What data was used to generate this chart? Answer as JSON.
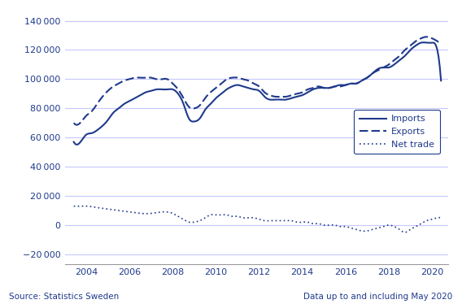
{
  "color": "#1F3A8C",
  "background_color": "#FFFFFF",
  "grid_color": "#C8C8FF",
  "source_text": "Source: Statistics Sweden",
  "data_text": "Data up to and including May 2020",
  "legend_labels": [
    "Imports",
    "Exports",
    "Net trade"
  ],
  "x_tick_years": [
    2004,
    2006,
    2008,
    2010,
    2012,
    2014,
    2016,
    2018,
    2020
  ],
  "yticks": [
    -20000,
    0,
    20000,
    40000,
    60000,
    80000,
    100000,
    120000,
    140000
  ],
  "ylim": [
    -27000,
    148000
  ],
  "xlim": [
    2003.0,
    2020.75
  ],
  "start_year": 2003,
  "start_month": 6,
  "imports_key": [
    [
      2003.42,
      57000
    ],
    [
      2003.83,
      59000
    ],
    [
      2004.0,
      62000
    ],
    [
      2004.25,
      63000
    ],
    [
      2004.5,
      65000
    ],
    [
      2004.75,
      68000
    ],
    [
      2005.0,
      72000
    ],
    [
      2005.25,
      77000
    ],
    [
      2005.5,
      80000
    ],
    [
      2005.75,
      83000
    ],
    [
      2006.0,
      85000
    ],
    [
      2006.25,
      87000
    ],
    [
      2006.5,
      89000
    ],
    [
      2006.75,
      91000
    ],
    [
      2007.0,
      92000
    ],
    [
      2007.25,
      93000
    ],
    [
      2007.5,
      93000
    ],
    [
      2007.75,
      93000
    ],
    [
      2008.0,
      93000
    ],
    [
      2008.25,
      90000
    ],
    [
      2008.5,
      83000
    ],
    [
      2008.75,
      73000
    ],
    [
      2009.0,
      71000
    ],
    [
      2009.25,
      73000
    ],
    [
      2009.5,
      79000
    ],
    [
      2009.75,
      83000
    ],
    [
      2010.0,
      87000
    ],
    [
      2010.25,
      90000
    ],
    [
      2010.5,
      93000
    ],
    [
      2010.75,
      95000
    ],
    [
      2011.0,
      96000
    ],
    [
      2011.25,
      95000
    ],
    [
      2011.5,
      94000
    ],
    [
      2011.75,
      93000
    ],
    [
      2012.0,
      92000
    ],
    [
      2012.25,
      88000
    ],
    [
      2012.5,
      86000
    ],
    [
      2012.75,
      86000
    ],
    [
      2013.0,
      86000
    ],
    [
      2013.25,
      86000
    ],
    [
      2013.5,
      87000
    ],
    [
      2013.75,
      88000
    ],
    [
      2014.0,
      89000
    ],
    [
      2014.25,
      91000
    ],
    [
      2014.5,
      93000
    ],
    [
      2014.75,
      94000
    ],
    [
      2015.0,
      94000
    ],
    [
      2015.25,
      94000
    ],
    [
      2015.5,
      95000
    ],
    [
      2015.75,
      96000
    ],
    [
      2016.0,
      96000
    ],
    [
      2016.25,
      97000
    ],
    [
      2016.5,
      97000
    ],
    [
      2016.75,
      99000
    ],
    [
      2017.0,
      101000
    ],
    [
      2017.25,
      104000
    ],
    [
      2017.5,
      107000
    ],
    [
      2017.75,
      108000
    ],
    [
      2018.0,
      108000
    ],
    [
      2018.25,
      110000
    ],
    [
      2018.5,
      113000
    ],
    [
      2018.75,
      116000
    ],
    [
      2019.0,
      120000
    ],
    [
      2019.25,
      123000
    ],
    [
      2019.5,
      125000
    ],
    [
      2019.75,
      125000
    ],
    [
      2020.0,
      125000
    ],
    [
      2020.25,
      120000
    ],
    [
      2020.42,
      99000
    ]
  ],
  "exports_key": [
    [
      2003.42,
      70000
    ],
    [
      2003.83,
      72000
    ],
    [
      2004.0,
      75000
    ],
    [
      2004.25,
      78000
    ],
    [
      2004.5,
      83000
    ],
    [
      2004.75,
      88000
    ],
    [
      2005.0,
      92000
    ],
    [
      2005.25,
      95000
    ],
    [
      2005.5,
      97000
    ],
    [
      2005.75,
      99000
    ],
    [
      2006.0,
      100000
    ],
    [
      2006.25,
      101000
    ],
    [
      2006.5,
      101000
    ],
    [
      2006.75,
      101000
    ],
    [
      2007.0,
      101000
    ],
    [
      2007.25,
      100000
    ],
    [
      2007.5,
      100000
    ],
    [
      2007.75,
      100000
    ],
    [
      2008.0,
      97000
    ],
    [
      2008.25,
      93000
    ],
    [
      2008.5,
      87000
    ],
    [
      2008.75,
      81000
    ],
    [
      2009.0,
      80000
    ],
    [
      2009.25,
      82000
    ],
    [
      2009.5,
      87000
    ],
    [
      2009.75,
      91000
    ],
    [
      2010.0,
      94000
    ],
    [
      2010.25,
      97000
    ],
    [
      2010.5,
      100000
    ],
    [
      2010.75,
      101000
    ],
    [
      2011.0,
      101000
    ],
    [
      2011.25,
      100000
    ],
    [
      2011.5,
      99000
    ],
    [
      2011.75,
      97000
    ],
    [
      2012.0,
      95000
    ],
    [
      2012.25,
      91000
    ],
    [
      2012.5,
      89000
    ],
    [
      2012.75,
      88000
    ],
    [
      2013.0,
      88000
    ],
    [
      2013.25,
      88000
    ],
    [
      2013.5,
      89000
    ],
    [
      2013.75,
      90000
    ],
    [
      2014.0,
      91000
    ],
    [
      2014.25,
      93000
    ],
    [
      2014.5,
      94000
    ],
    [
      2014.75,
      95000
    ],
    [
      2015.0,
      94000
    ],
    [
      2015.25,
      94000
    ],
    [
      2015.5,
      95000
    ],
    [
      2015.75,
      95000
    ],
    [
      2016.0,
      96000
    ],
    [
      2016.25,
      97000
    ],
    [
      2016.5,
      97000
    ],
    [
      2016.75,
      99000
    ],
    [
      2017.0,
      101000
    ],
    [
      2017.25,
      104000
    ],
    [
      2017.5,
      106000
    ],
    [
      2017.75,
      108000
    ],
    [
      2018.0,
      110000
    ],
    [
      2018.25,
      113000
    ],
    [
      2018.5,
      116000
    ],
    [
      2018.75,
      120000
    ],
    [
      2019.0,
      123000
    ],
    [
      2019.25,
      126000
    ],
    [
      2019.5,
      128000
    ],
    [
      2019.75,
      129000
    ],
    [
      2020.0,
      128000
    ],
    [
      2020.25,
      126000
    ],
    [
      2020.42,
      124000
    ]
  ],
  "net_trade_key": [
    [
      2003.42,
      13000
    ],
    [
      2003.83,
      13000
    ],
    [
      2004.0,
      13000
    ],
    [
      2004.5,
      12000
    ],
    [
      2005.0,
      11000
    ],
    [
      2005.5,
      10000
    ],
    [
      2006.0,
      9000
    ],
    [
      2006.5,
      8000
    ],
    [
      2007.0,
      8000
    ],
    [
      2007.5,
      9000
    ],
    [
      2008.0,
      8000
    ],
    [
      2008.25,
      6000
    ],
    [
      2008.5,
      4000
    ],
    [
      2008.75,
      2000
    ],
    [
      2009.0,
      2000
    ],
    [
      2009.25,
      3000
    ],
    [
      2009.5,
      5000
    ],
    [
      2009.75,
      7000
    ],
    [
      2010.0,
      7000
    ],
    [
      2010.25,
      7000
    ],
    [
      2010.5,
      7000
    ],
    [
      2010.75,
      6000
    ],
    [
      2011.0,
      6000
    ],
    [
      2011.25,
      5000
    ],
    [
      2011.5,
      5000
    ],
    [
      2011.75,
      5000
    ],
    [
      2012.0,
      4000
    ],
    [
      2012.25,
      3000
    ],
    [
      2012.5,
      3000
    ],
    [
      2012.75,
      3000
    ],
    [
      2013.0,
      3000
    ],
    [
      2013.25,
      3000
    ],
    [
      2013.5,
      3000
    ],
    [
      2013.75,
      2000
    ],
    [
      2014.0,
      2000
    ],
    [
      2014.25,
      2000
    ],
    [
      2014.5,
      1000
    ],
    [
      2014.75,
      1000
    ],
    [
      2015.0,
      0
    ],
    [
      2015.25,
      0
    ],
    [
      2015.5,
      0
    ],
    [
      2015.75,
      -1000
    ],
    [
      2016.0,
      -1000
    ],
    [
      2016.25,
      -2000
    ],
    [
      2016.5,
      -3000
    ],
    [
      2016.75,
      -4000
    ],
    [
      2017.0,
      -4000
    ],
    [
      2017.25,
      -3000
    ],
    [
      2017.5,
      -2000
    ],
    [
      2017.75,
      -1000
    ],
    [
      2018.0,
      0
    ],
    [
      2018.25,
      -1000
    ],
    [
      2018.5,
      -3000
    ],
    [
      2018.75,
      -5000
    ],
    [
      2019.0,
      -3000
    ],
    [
      2019.25,
      -1000
    ],
    [
      2019.5,
      1000
    ],
    [
      2019.75,
      3000
    ],
    [
      2020.0,
      4000
    ],
    [
      2020.25,
      5000
    ],
    [
      2020.42,
      5000
    ]
  ]
}
